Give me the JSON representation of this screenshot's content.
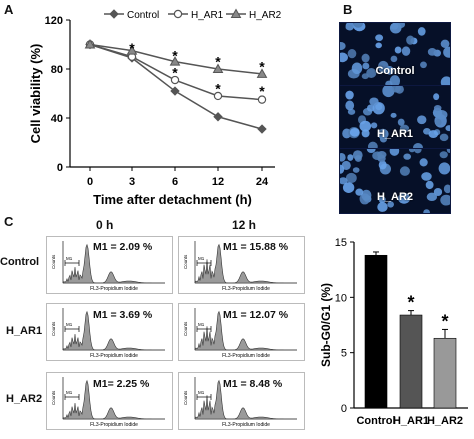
{
  "panel_labels": {
    "a": "A",
    "b": "B",
    "c": "C"
  },
  "chart_data": [
    {
      "type": "line",
      "panel": "A",
      "xlabel": "Time after detachment (h)",
      "ylabel": "Cell viability (%)",
      "categories": [
        "0",
        "3",
        "6",
        "12",
        "24"
      ],
      "yticks": [
        "0",
        "40",
        "80",
        "120"
      ],
      "ylim": [
        0,
        120
      ],
      "legend_position": "top",
      "grid": false,
      "series": [
        {
          "name": "Control",
          "values": [
            100,
            89,
            62,
            41,
            31
          ],
          "errors": [
            0,
            1.5,
            1.5,
            3,
            1
          ],
          "marker": "diamond"
        },
        {
          "name": "H_AR1",
          "values": [
            100,
            90,
            71,
            58,
            55
          ],
          "errors": [
            0,
            1.5,
            2,
            1.5,
            2
          ],
          "marker": "circle"
        },
        {
          "name": "H_AR2",
          "values": [
            100,
            95,
            86,
            80,
            76
          ],
          "errors": [
            0,
            1.5,
            2,
            2,
            2.5
          ],
          "marker": "triangle"
        }
      ],
      "significance": {
        "symbol": "*",
        "marks": [
          [
            3,
            98
          ],
          [
            6,
            92
          ],
          [
            6,
            78
          ],
          [
            12,
            87
          ],
          [
            12,
            65
          ],
          [
            24,
            83
          ],
          [
            24,
            63
          ]
        ]
      }
    },
    {
      "type": "bar",
      "panel": "C",
      "categories": [
        "Control",
        "H_AR1",
        "H_AR2"
      ],
      "values": [
        13.8,
        8.4,
        6.3
      ],
      "errors": [
        0.3,
        0.4,
        0.8
      ],
      "colors": [
        "#000000",
        "#555555",
        "#999999"
      ],
      "significant": [
        false,
        true,
        true
      ],
      "significance_symbol": "*",
      "ylabel": "Sub-G0/G1 (%)",
      "ylim": [
        0,
        15
      ],
      "yticks": [
        "0",
        "5",
        "10",
        "15"
      ]
    }
  ],
  "fluorescence": [
    {
      "label": "Control"
    },
    {
      "label": "H_AR1"
    },
    {
      "label": "H_AR2"
    }
  ],
  "flow": {
    "time_headers": [
      "0 h",
      "12 h"
    ],
    "row_labels": [
      "Control",
      "H_AR1",
      "H_AR2"
    ],
    "m1_values": [
      [
        "M1 = 2.09 %",
        "M1 = 15.88 %"
      ],
      [
        "M1 = 3.69 %",
        "M1 = 12.07 %"
      ],
      [
        "M1= 2.25 %",
        "M1 = 8.48 %"
      ]
    ],
    "axis_x": "FL3-Propidium Iodide",
    "axis_y": "Counts",
    "marker": "M1"
  }
}
